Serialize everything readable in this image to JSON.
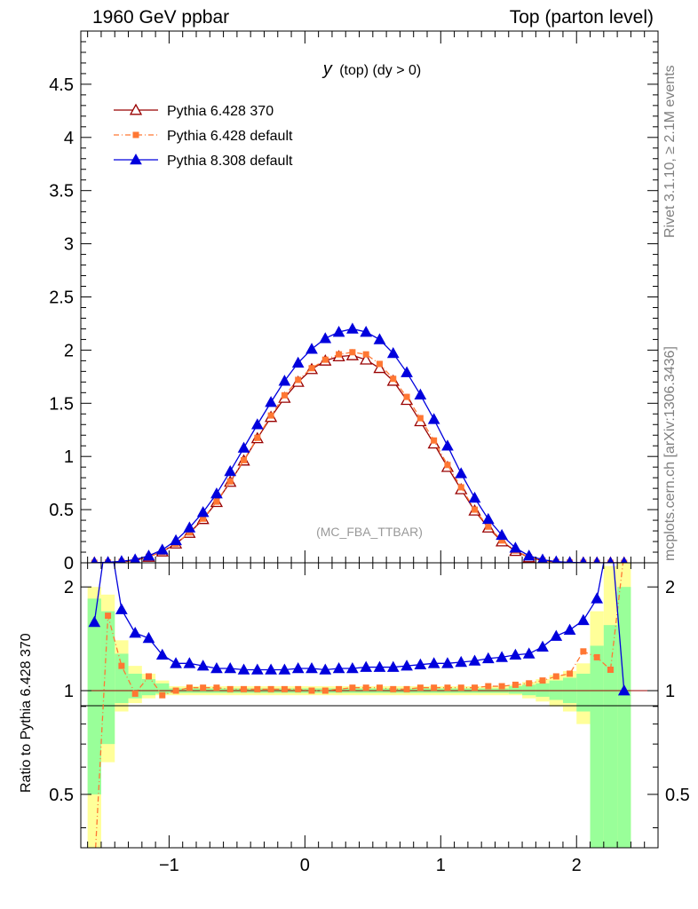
{
  "header": {
    "left": "1960 GeV ppbar",
    "right": "Top (parton level)"
  },
  "side_text": {
    "rivet": "Rivet 3.1.10, ≥ 2.1M events",
    "mcplots": "mcplots.cern.ch [arXiv:1306.3436]"
  },
  "chart_data": {
    "type": "line",
    "title": "y (top) (dy > 0)",
    "title_main": "y",
    "title_rest": "(top) (dy > 0)",
    "watermark": "(MC_FBA_TTBAR)",
    "xlim": [
      -1.65,
      2.6
    ],
    "ylim": [
      0,
      5
    ],
    "yticks": [
      0,
      0.5,
      1,
      1.5,
      2,
      2.5,
      3,
      3.5,
      4,
      4.5
    ],
    "ytick_labels": [
      "0",
      "0.5",
      "1",
      "1.5",
      "2",
      "2.5",
      "3",
      "3.5",
      "4",
      "4.5"
    ],
    "xticks": [
      -1,
      0,
      1,
      2
    ],
    "xtick_labels": [
      "−1",
      "0",
      "1",
      "2"
    ],
    "legend_position": "top-left",
    "x": [
      -1.55,
      -1.45,
      -1.35,
      -1.25,
      -1.15,
      -1.05,
      -0.95,
      -0.85,
      -0.75,
      -0.65,
      -0.55,
      -0.45,
      -0.35,
      -0.25,
      -0.15,
      -0.05,
      0.05,
      0.15,
      0.25,
      0.35,
      0.45,
      0.55,
      0.65,
      0.75,
      0.85,
      0.95,
      1.05,
      1.15,
      1.25,
      1.35,
      1.45,
      1.55,
      1.65,
      1.75,
      1.85,
      1.95,
      2.05,
      2.15,
      2.25,
      2.35
    ],
    "series": [
      {
        "name": "Pythia 6.428 370",
        "color": "#990000",
        "marker": "open-triangle",
        "values": [
          0.0004,
          0.002,
          0.008,
          0.022,
          0.055,
          0.105,
          0.18,
          0.28,
          0.41,
          0.57,
          0.76,
          0.96,
          1.17,
          1.37,
          1.55,
          1.7,
          1.82,
          1.9,
          1.94,
          1.95,
          1.91,
          1.83,
          1.71,
          1.53,
          1.33,
          1.12,
          0.9,
          0.69,
          0.49,
          0.33,
          0.2,
          0.11,
          0.05,
          0.02,
          0.007,
          0.002,
          0.0006,
          0.0002,
          0.0001,
          0
        ]
      },
      {
        "name": "Pythia 6.428 default",
        "color": "#ff7733",
        "marker": "filled-square",
        "values": [
          0.0003,
          0.003,
          0.009,
          0.022,
          0.057,
          0.103,
          0.18,
          0.285,
          0.415,
          0.575,
          0.765,
          0.965,
          1.175,
          1.385,
          1.575,
          1.72,
          1.83,
          1.91,
          1.96,
          1.98,
          1.96,
          1.87,
          1.73,
          1.56,
          1.36,
          1.15,
          0.92,
          0.71,
          0.5,
          0.34,
          0.21,
          0.115,
          0.053,
          0.022,
          0.008,
          0.0025,
          0.0008,
          0.0002,
          0.0001,
          0
        ]
      },
      {
        "name": "Pythia 8.308 default",
        "color": "#0000dd",
        "marker": "filled-triangle",
        "values": [
          0.0006,
          0.005,
          0.014,
          0.03,
          0.066,
          0.122,
          0.21,
          0.33,
          0.475,
          0.65,
          0.86,
          1.08,
          1.3,
          1.51,
          1.71,
          1.88,
          2.01,
          2.11,
          2.17,
          2.2,
          2.17,
          2.1,
          1.97,
          1.79,
          1.58,
          1.35,
          1.1,
          0.84,
          0.61,
          0.41,
          0.26,
          0.14,
          0.066,
          0.029,
          0.011,
          0.004,
          0.0012,
          0.0003,
          0.0001,
          0
        ]
      }
    ],
    "ratio": {
      "ylabel": "Ratio to Pythia 6.428 370",
      "ylim": [
        0.35,
        2.35
      ],
      "yticks": [
        0.5,
        1,
        2
      ],
      "ytick_labels": [
        "0.5",
        "1",
        "2"
      ],
      "band_edges": [
        -1.6,
        -1.5,
        -1.4,
        -1.3,
        -1.2,
        -1.1,
        -1.0,
        1.5,
        1.6,
        1.7,
        1.8,
        1.9,
        2.0,
        2.1,
        2.2,
        2.3,
        2.4
      ],
      "band_green": [
        [
          0.5,
          1.85
        ],
        [
          0.7,
          1.7
        ],
        [
          0.92,
          1.28
        ],
        [
          0.95,
          1.12
        ],
        [
          0.97,
          1.08
        ],
        [
          0.98,
          1.05
        ],
        [
          0.985,
          1.015
        ],
        [
          0.98,
          1.03
        ],
        [
          0.97,
          1.04
        ],
        [
          0.96,
          1.05
        ],
        [
          0.94,
          1.07
        ],
        [
          0.92,
          1.09
        ],
        [
          0.87,
          1.12
        ],
        [
          0.3,
          1.35
        ],
        [
          0.3,
          1.55
        ],
        [
          0.3,
          2.0
        ]
      ],
      "band_yellow": [
        [
          0.35,
          2.0
        ],
        [
          0.62,
          1.9
        ],
        [
          0.87,
          1.4
        ],
        [
          0.92,
          1.18
        ],
        [
          0.95,
          1.12
        ],
        [
          0.97,
          1.07
        ],
        [
          0.97,
          1.03
        ],
        [
          0.97,
          1.04
        ],
        [
          0.95,
          1.06
        ],
        [
          0.93,
          1.08
        ],
        [
          0.9,
          1.11
        ],
        [
          0.87,
          1.14
        ],
        [
          0.8,
          1.2
        ],
        [
          0.3,
          1.7
        ],
        [
          0.3,
          2.3
        ],
        [
          0.3,
          2.35
        ]
      ],
      "series": [
        {
          "name": "Pythia 6.428 default",
          "values": [
            0.3,
            1.65,
            1.18,
            0.98,
            1.1,
            0.97,
            1.0,
            1.02,
            1.02,
            1.02,
            1.01,
            1.01,
            1.01,
            1.01,
            1.01,
            1.01,
            1.0,
            1.0,
            1.01,
            1.02,
            1.02,
            1.02,
            1.01,
            1.01,
            1.02,
            1.02,
            1.02,
            1.02,
            1.02,
            1.03,
            1.03,
            1.04,
            1.05,
            1.07,
            1.1,
            1.12,
            1.3,
            1.25,
            1.15,
            2.5
          ]
        },
        {
          "name": "Pythia 8.308 default",
          "values": [
            1.58,
            3.0,
            1.72,
            1.47,
            1.42,
            1.27,
            1.2,
            1.2,
            1.18,
            1.16,
            1.16,
            1.15,
            1.15,
            1.15,
            1.15,
            1.16,
            1.16,
            1.15,
            1.16,
            1.16,
            1.17,
            1.17,
            1.17,
            1.18,
            1.19,
            1.2,
            1.2,
            1.21,
            1.22,
            1.24,
            1.25,
            1.27,
            1.28,
            1.34,
            1.44,
            1.5,
            1.6,
            1.85,
            3.0,
            1.0
          ]
        }
      ]
    }
  }
}
